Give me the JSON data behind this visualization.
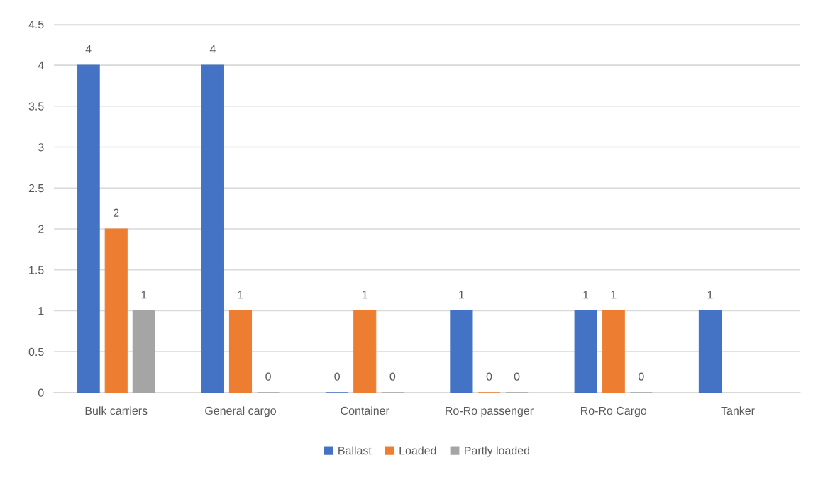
{
  "chart_data": {
    "type": "bar",
    "categories": [
      "Bulk carriers",
      "General cargo",
      "Container",
      "Ro-Ro passenger",
      "Ro-Ro Cargo",
      "Tanker"
    ],
    "series": [
      {
        "name": "Ballast",
        "color": "#4472c4",
        "values": [
          4,
          4,
          0,
          1,
          1,
          1
        ]
      },
      {
        "name": "Loaded",
        "color": "#ed7d31",
        "values": [
          2,
          1,
          1,
          0,
          1,
          null
        ]
      },
      {
        "name": "Partly loaded",
        "color": "#a5a5a5",
        "values": [
          1,
          0,
          0,
          0,
          0,
          null
        ]
      }
    ],
    "ylim": [
      0,
      4.5
    ],
    "yticks": [
      0,
      0.5,
      1,
      1.5,
      2,
      2.5,
      3,
      3.5,
      4,
      4.5
    ],
    "grid": "y",
    "legend": "bottom",
    "data_labels": true
  }
}
